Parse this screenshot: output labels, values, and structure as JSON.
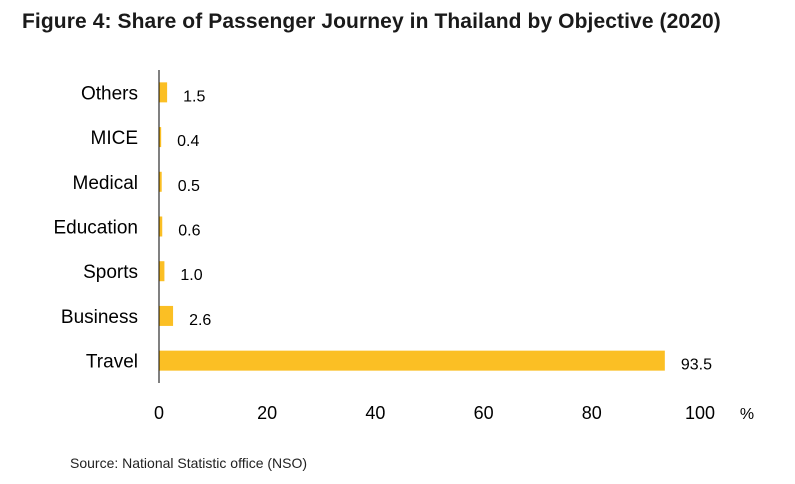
{
  "title": "Figure 4:  Share of  Passenger Journey in Thailand  by Objective (2020)",
  "source": "Source: National Statistic office (NSO)",
  "colors": {
    "bar": "#FBBF24",
    "axis": "#000000"
  },
  "chart_data": {
    "type": "bar",
    "orientation": "horizontal",
    "title": "Figure 4:  Share of  Passenger Journey in Thailand  by Objective (2020)",
    "categories": [
      "Others",
      "MICE",
      "Medical",
      "Education",
      "Sports",
      "Business",
      "Travel"
    ],
    "values": [
      1.5,
      0.4,
      0.5,
      0.6,
      1.0,
      2.6,
      93.5
    ],
    "value_labels": [
      "1.5",
      "0.4",
      "0.5",
      "0.6",
      "1.0",
      "2.6",
      "93.5"
    ],
    "xlim": [
      0,
      100
    ],
    "xticks": [
      0,
      20,
      40,
      60,
      80,
      100
    ],
    "xunit": "%",
    "grid": false,
    "legend": "none"
  }
}
